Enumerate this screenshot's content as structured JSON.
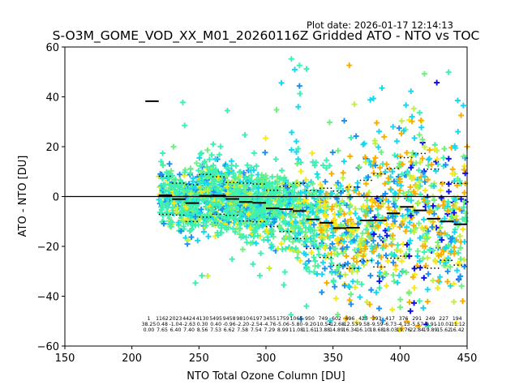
{
  "plot_date": "Plot date: 2026-01-17 12:14:13",
  "chart_data": {
    "type": "scatter",
    "title": "S-O3M_GOME_VOD_XX_M01_20260116Z Gridded ATO - NTO vs TOC",
    "xlabel": "NTO Total Ozone Column [DU]",
    "ylabel": "ATO - NTO [DU]",
    "xlim": [
      150,
      450
    ],
    "ylim": [
      -60,
      60
    ],
    "xticks": [
      "150",
      "200",
      "250",
      "300",
      "350",
      "400",
      "450"
    ],
    "xtick_values": [
      150,
      200,
      250,
      300,
      350,
      400,
      450
    ],
    "yticks": [
      "60",
      "40",
      "20",
      "0",
      "−20",
      "−40",
      "−60"
    ],
    "ytick_values": [
      60,
      40,
      20,
      0,
      -20,
      -40,
      -60
    ],
    "grid": false,
    "reference_line_y": 0,
    "bin_width": 10,
    "bins": {
      "centers": [
        215,
        225,
        235,
        245,
        255,
        265,
        275,
        285,
        295,
        305,
        315,
        325,
        335,
        345,
        355,
        365,
        375,
        385,
        395,
        405,
        415,
        425,
        435,
        445
      ],
      "count_labels": [
        "1",
        "1162",
        "2023",
        "4424",
        "4130",
        "5495",
        "9458",
        "9810",
        "6197",
        "3455",
        "1759",
        "1065",
        "950",
        "749",
        "602",
        "496",
        "425",
        "393",
        "417",
        "376",
        "291",
        "249",
        "227",
        "194"
      ],
      "mean_labels": [
        "38.25",
        "0.48",
        "-1.04",
        "-2.63",
        "0.30",
        "0.40",
        "-0.96",
        "-2.20",
        "-2.54",
        "-4.76",
        "-5.06",
        "-5.80",
        "-9.20",
        "-10.54",
        "-12.68",
        "-12.53",
        "-9.58",
        "-9.59",
        "-6.73",
        "-4.13",
        "-5.57",
        "-8.91",
        "-10.01",
        "-11.12"
      ],
      "std_labels": [
        "0.00",
        "7.65",
        "6.40",
        "7.40",
        "8.56",
        "7.53",
        "6.62",
        "7.58",
        "7.54",
        "7.29",
        "8.99",
        "11.08",
        "11.61",
        "13.88",
        "14.89",
        "16.34",
        "16.10",
        "18.68",
        "18.03",
        "19.76",
        "22.84",
        "19.89",
        "15.62",
        "16.42"
      ],
      "mean": [
        38.25,
        0.48,
        -1.04,
        -2.63,
        0.3,
        0.4,
        -0.96,
        -2.2,
        -2.54,
        -4.76,
        -5.06,
        -5.8,
        -9.2,
        -10.54,
        -12.68,
        -12.53,
        -9.58,
        -9.59,
        -6.73,
        -4.13,
        -5.57,
        -8.91,
        -10.01,
        -11.12
      ],
      "std": [
        0.0,
        7.65,
        6.4,
        7.4,
        8.56,
        7.53,
        6.62,
        7.58,
        7.54,
        7.29,
        8.99,
        11.08,
        11.61,
        13.88,
        14.89,
        16.34,
        16.1,
        18.68,
        18.03,
        19.76,
        22.84,
        19.89,
        15.62,
        16.42
      ]
    },
    "marker": "+",
    "colors": {
      "dark_blue": "#1010e8",
      "blue": "#1e90f0",
      "cyan": "#18d8f0",
      "aquamarine": "#40f0b0",
      "green": "#70f080",
      "yellow_green": "#c0f040",
      "yellow": "#f8e818",
      "orange": "#f8b000",
      "median_line": "#000000",
      "axis": "#000000"
    }
  }
}
